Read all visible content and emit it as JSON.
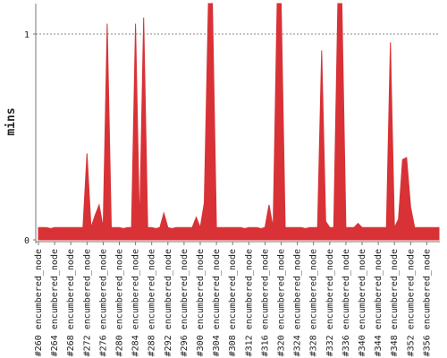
{
  "chart_data": {
    "type": "area",
    "title": "",
    "xlabel": "",
    "ylabel": "mins",
    "ylim": [
      0,
      1.15
    ],
    "yticks": [
      0,
      1
    ],
    "ytick_labels": [
      "0",
      "1"
    ],
    "grid": "dashed line at y = 1",
    "legend": "none",
    "color": "#d83236",
    "x_tick_labels": [
      "#260 encumbered_node",
      "#264 encumbered_node",
      "#268 encumbered_node",
      "#272 encumbered_node",
      "#276 encumbered_node",
      "#280 encumbered_node",
      "#284 encumbered_node",
      "#288 encumbered_node",
      "#292 encumbered_node",
      "#296 encumbered_node",
      "#300 encumbered_node",
      "#304 encumbered_node",
      "#308 encumbered_node",
      "#312 encumbered_node",
      "#316 encumbered_node",
      "#320 encumbered_node",
      "#324 encumbered_node",
      "#328 encumbered_node",
      "#332 encumbered_node",
      "#336 encumbered_node",
      "#340 encumbered_node",
      "#344 encumbered_node",
      "#348 encumbered_node",
      "#352 encumbered_node",
      "#356 encumbered_node"
    ],
    "x": [
      260,
      261,
      262,
      263,
      264,
      265,
      266,
      267,
      268,
      269,
      270,
      271,
      272,
      273,
      274,
      275,
      276,
      277,
      278,
      279,
      280,
      281,
      282,
      283,
      284,
      285,
      286,
      287,
      288,
      289,
      290,
      291,
      292,
      293,
      294,
      295,
      296,
      297,
      298,
      299,
      300,
      301,
      302,
      303,
      304,
      305,
      306,
      307,
      308,
      309,
      310,
      311,
      312,
      313,
      314,
      315,
      316,
      317,
      318,
      319,
      320,
      321,
      322,
      323,
      324,
      325,
      326,
      327,
      328,
      329,
      330,
      331,
      332,
      333,
      334,
      335,
      336,
      337,
      338,
      339,
      340,
      341,
      342,
      343,
      344,
      345,
      346,
      347,
      348,
      349,
      350,
      351,
      352,
      353,
      354,
      355,
      356,
      357,
      358,
      359
    ],
    "values": [
      0.06,
      0.06,
      0.06,
      0.055,
      0.06,
      0.06,
      0.06,
      0.06,
      0.06,
      0.06,
      0.06,
      0.06,
      0.42,
      0.06,
      0.12,
      0.17,
      0.06,
      1.05,
      0.06,
      0.06,
      0.06,
      0.055,
      0.06,
      0.06,
      1.05,
      0.06,
      1.08,
      0.06,
      0.06,
      0.055,
      0.06,
      0.13,
      0.06,
      0.055,
      0.06,
      0.06,
      0.06,
      0.06,
      0.06,
      0.11,
      0.06,
      0.18,
      1.25,
      1.25,
      0.06,
      0.06,
      0.06,
      0.06,
      0.06,
      0.06,
      0.06,
      0.055,
      0.06,
      0.06,
      0.06,
      0.055,
      0.06,
      0.17,
      0.06,
      1.25,
      1.25,
      0.06,
      0.06,
      0.06,
      0.06,
      0.06,
      0.055,
      0.06,
      0.06,
      0.06,
      0.92,
      0.09,
      0.06,
      0.06,
      1.25,
      1.25,
      0.06,
      0.06,
      0.06,
      0.08,
      0.06,
      0.06,
      0.06,
      0.06,
      0.06,
      0.06,
      0.06,
      0.96,
      0.06,
      0.1,
      0.39,
      0.4,
      0.16,
      0.06,
      0.06,
      0.06,
      0.06,
      0.06,
      0.06,
      0.06
    ]
  }
}
